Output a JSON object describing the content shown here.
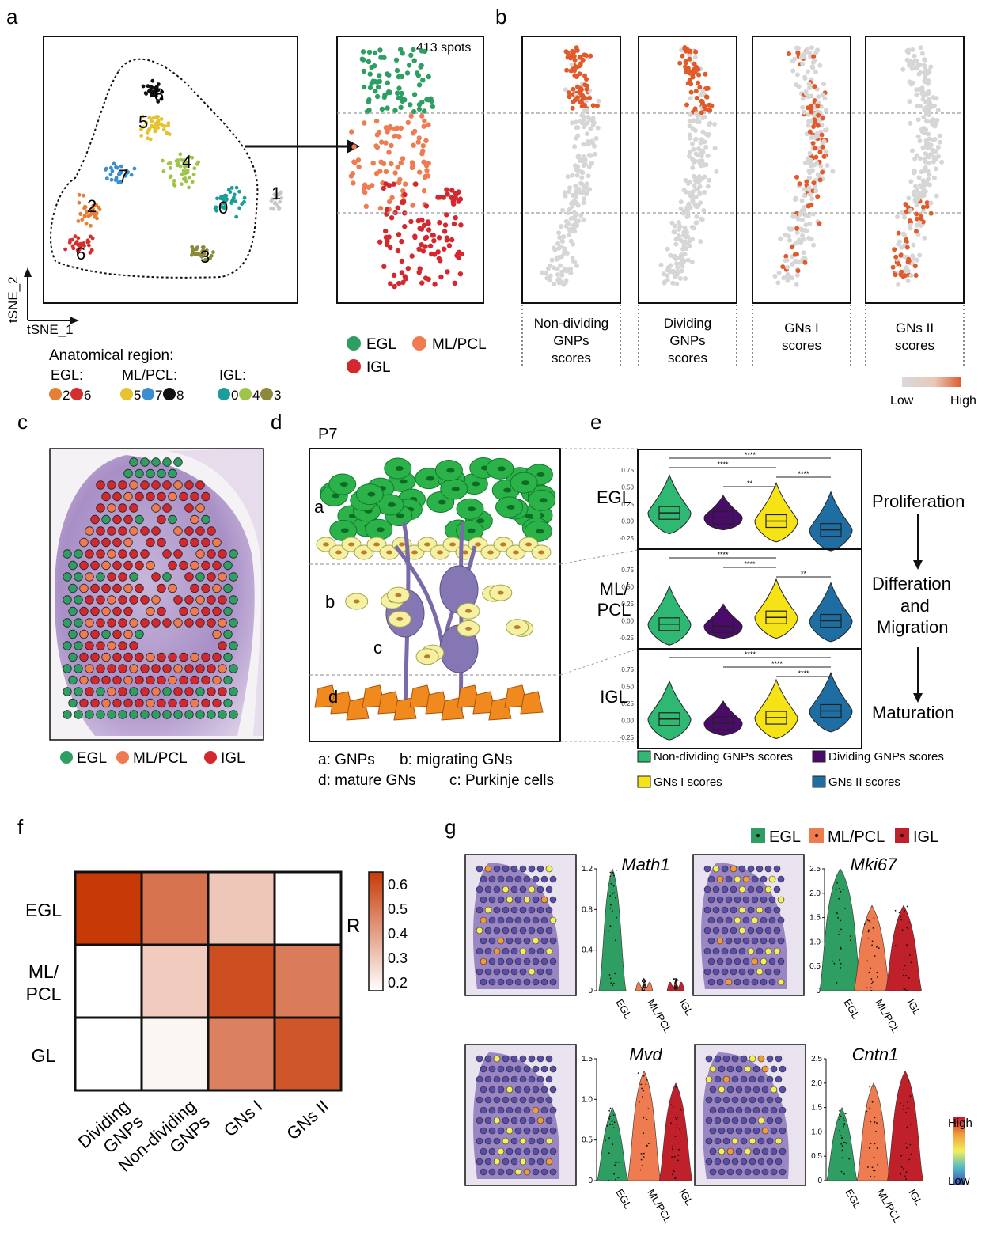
{
  "panels": {
    "a": "a",
    "b": "b",
    "c": "c",
    "d": "d",
    "e": "e",
    "f": "f",
    "g": "g"
  },
  "panel_a": {
    "axis_x": "tSNE_1",
    "axis_y": "tSNE_2",
    "spots_label": "413 spots",
    "cluster_labels": [
      "8",
      "5",
      "7",
      "4",
      "2",
      "0",
      "1",
      "6",
      "3"
    ],
    "legend_title": "Anatomical region:",
    "legend_groups": [
      {
        "name": "EGL:",
        "items": [
          {
            "label": "2",
            "color": "#e67e35"
          },
          {
            "label": "6",
            "color": "#d32f2f"
          }
        ]
      },
      {
        "name": "ML/PCL:",
        "items": [
          {
            "label": "5",
            "color": "#e5c230"
          },
          {
            "label": "7",
            "color": "#3b8fd0"
          },
          {
            "label": "8",
            "color": "#111111"
          }
        ]
      },
      {
        "name": "IGL:",
        "items": [
          {
            "label": "0",
            "color": "#1b9e9a"
          },
          {
            "label": "4",
            "color": "#9ec54a"
          },
          {
            "label": "3",
            "color": "#8a8a3a"
          }
        ]
      }
    ],
    "region_legend": [
      {
        "label": "EGL",
        "color": "#2e9e62"
      },
      {
        "label": "ML/PCL",
        "color": "#ee7c50"
      },
      {
        "label": "IGL",
        "color": "#d2282e"
      }
    ]
  },
  "panel_b": {
    "scores": [
      {
        "lines": [
          "Non-dividing",
          "GNPs",
          "scores"
        ]
      },
      {
        "lines": [
          "Dividing",
          "GNPs",
          "scores"
        ]
      },
      {
        "lines": [
          "GNs I",
          "scores"
        ]
      },
      {
        "lines": [
          "GNs II",
          "scores"
        ]
      }
    ],
    "colorbar_low": "Low",
    "colorbar_high": "High",
    "color_low": "#d6d6d6",
    "color_high": "#e05a2a"
  },
  "panel_c": {
    "legend": [
      {
        "label": "EGL",
        "color": "#2e9e62"
      },
      {
        "label": "ML/PCL",
        "color": "#ee7c50"
      },
      {
        "label": "IGL",
        "color": "#d2282e"
      }
    ]
  },
  "panel_d": {
    "title": "P7",
    "layers": [
      "a",
      "b",
      "c",
      "d"
    ],
    "legend_lines": [
      "a: GNPs",
      "b: migrating GNs",
      "d: mature GNs",
      "c: Purkinje cells"
    ]
  },
  "panel_e": {
    "rows": [
      "EGL",
      "ML/\nPCL",
      "IGL"
    ],
    "stages": [
      "Proliferation",
      "Differation",
      "and",
      "Migration",
      "Maturation"
    ],
    "yticks": [
      "0.75",
      "0.50",
      "0.25",
      "0.00",
      "-0.25"
    ],
    "signif": [
      [
        "****",
        "****",
        "****",
        "**"
      ],
      [
        "****",
        "****",
        "**"
      ],
      [
        "****",
        "****",
        "****"
      ]
    ],
    "legend": [
      {
        "label": "Non-dividing GNPs scores",
        "color": "#2eb872"
      },
      {
        "label": "Dividing GNPs scores",
        "color": "#4b0b6b"
      },
      {
        "label": "GNs I scores",
        "color": "#f5e316"
      },
      {
        "label": "GNs II scores",
        "color": "#1f6ea3"
      }
    ]
  },
  "panel_f": {
    "rows": [
      "EGL",
      "ML/\nPCL",
      "GL"
    ],
    "cols": [
      "Dividing\nGNPs",
      "Non-dividing\nGNPs",
      "GNs I",
      "GNs II"
    ],
    "values": [
      [
        0.62,
        0.5,
        0.32,
        0.2
      ],
      [
        0.2,
        0.31,
        0.58,
        0.48
      ],
      [
        0.2,
        0.22,
        0.47,
        0.56
      ]
    ],
    "colorbar_title": "R",
    "colorbar_ticks": [
      "0.6",
      "0.5",
      "0.4",
      "0.3",
      "0.2"
    ],
    "color_low": "#ffffff",
    "color_high": "#c73a07"
  },
  "panel_g": {
    "legend": [
      {
        "label": "EGL",
        "color": "#2e9e62"
      },
      {
        "label": "ML/PCL",
        "color": "#ee7c50"
      },
      {
        "label": "IGL",
        "color": "#c0202a"
      }
    ],
    "genes": [
      {
        "name": "Math1",
        "yticks": [
          "1.2",
          "0.8",
          "0.4",
          "0"
        ]
      },
      {
        "name": "Mki67",
        "yticks": [
          "2.5",
          "2.0",
          "1.5",
          "1.0",
          "0.5",
          "0"
        ]
      },
      {
        "name": "Mvd",
        "yticks": [
          "1.5",
          "1.0",
          "0.5",
          "0"
        ]
      },
      {
        "name": "Cntn1",
        "yticks": [
          "2.5",
          "2.0",
          "1.5",
          "1.0",
          "0.5",
          "0"
        ]
      }
    ],
    "xcats": [
      "EGL",
      "ML/PCL",
      "IGL"
    ],
    "colorbar_high": "High",
    "colorbar_low": "Low"
  }
}
